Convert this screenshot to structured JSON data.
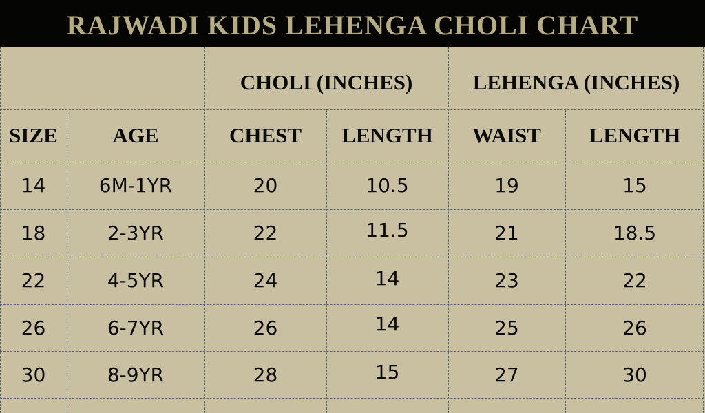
{
  "title": "RAJWADI KIDS LEHENGA CHOLI CHART",
  "groups": {
    "choli": "CHOLI (INCHES)",
    "lehenga": "LEHENGA (INCHES)"
  },
  "columns": [
    "SIZE",
    "AGE",
    "CHEST",
    "LENGTH",
    "WAIST",
    "LENGTH"
  ],
  "rows": [
    [
      "14",
      "6M-1YR",
      "20",
      "10.5",
      "19",
      "15"
    ],
    [
      "18",
      "2-3YR",
      "22",
      "11.5",
      "21",
      "18.5"
    ],
    [
      "22",
      "4-5YR",
      "24",
      "14",
      "23",
      "22"
    ],
    [
      "26",
      "6-7YR",
      "26",
      "14",
      "25",
      "26"
    ],
    [
      "30",
      "8-9YR",
      "28",
      "15",
      "27",
      "30"
    ]
  ],
  "colors": {
    "title_bg": "#050503",
    "title_text": "#b6ad82",
    "sheet_bg": "#c8c0a0",
    "grid_line": "#4f6270"
  }
}
